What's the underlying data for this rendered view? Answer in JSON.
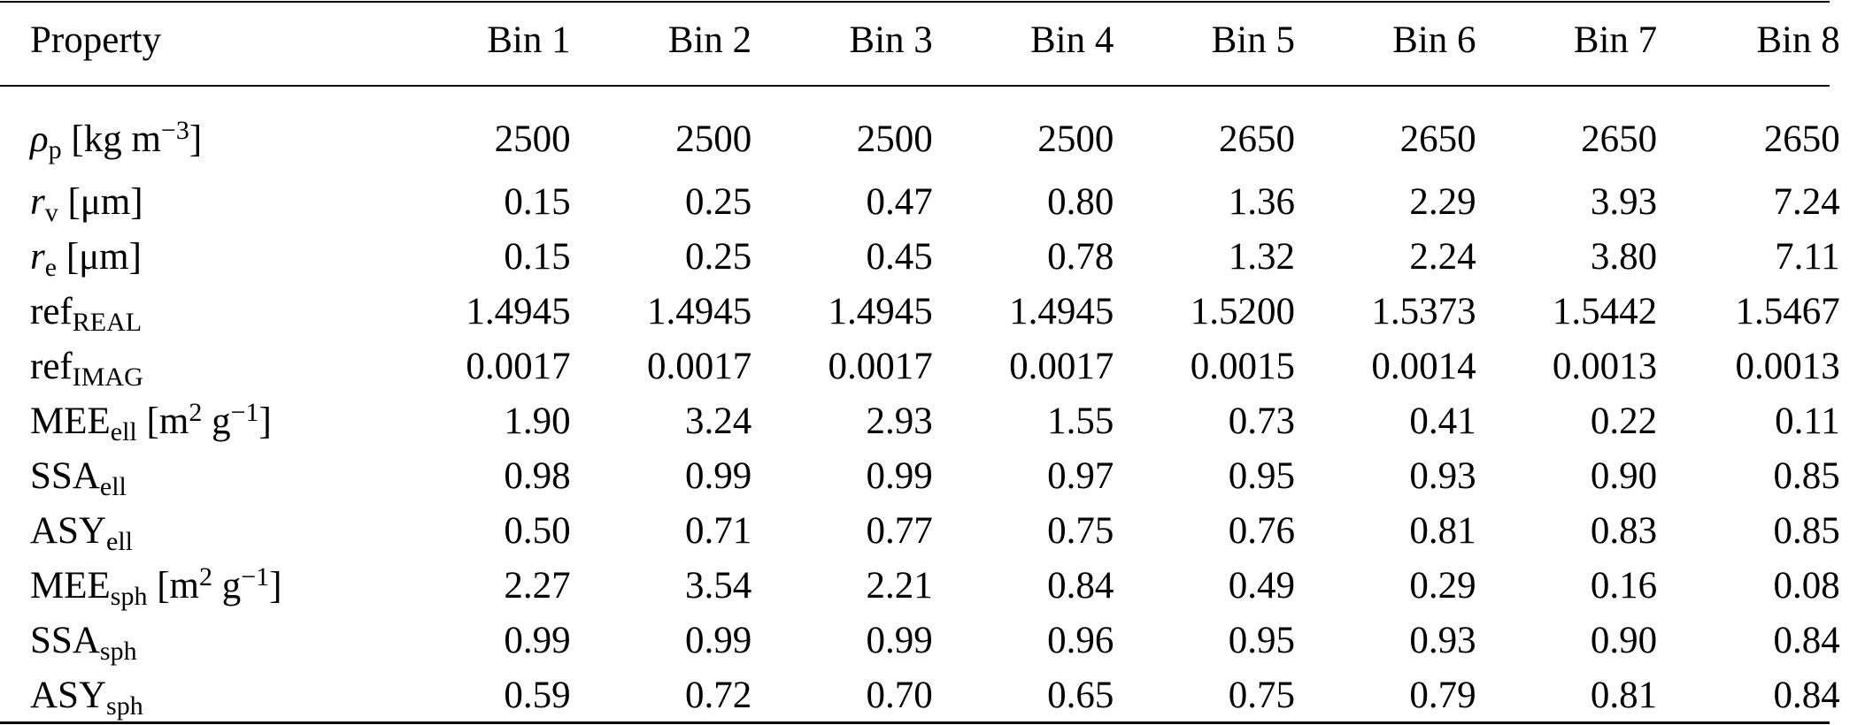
{
  "header": {
    "property": "Property",
    "bins": [
      "Bin 1",
      "Bin 2",
      "Bin 3",
      "Bin 4",
      "Bin 5",
      "Bin 6",
      "Bin 7",
      "Bin 8"
    ]
  },
  "rows": [
    {
      "label": {
        "main": "ρ",
        "sub": "p",
        "unit_pre": "[kg m",
        "unit_sup": "−3",
        "unit_post": "]"
      },
      "values": [
        "2500",
        "2500",
        "2500",
        "2500",
        "2650",
        "2650",
        "2650",
        "2650"
      ]
    },
    {
      "label": {
        "main": "r",
        "sub": "v",
        "unit_pre": "[μm]"
      },
      "values": [
        "0.15",
        "0.25",
        "0.47",
        "0.80",
        "1.36",
        "2.29",
        "3.93",
        "7.24"
      ]
    },
    {
      "label": {
        "main": "r",
        "sub": "e",
        "unit_pre": "[μm]"
      },
      "values": [
        "0.15",
        "0.25",
        "0.45",
        "0.78",
        "1.32",
        "2.24",
        "3.80",
        "7.11"
      ]
    },
    {
      "label": {
        "main": "ref",
        "sub": "REAL"
      },
      "values": [
        "1.4945",
        "1.4945",
        "1.4945",
        "1.4945",
        "1.5200",
        "1.5373",
        "1.5442",
        "1.5467"
      ]
    },
    {
      "label": {
        "main": "ref",
        "sub": "IMAG"
      },
      "values": [
        "0.0017",
        "0.0017",
        "0.0017",
        "0.0017",
        "0.0015",
        "0.0014",
        "0.0013",
        "0.0013"
      ]
    },
    {
      "label": {
        "main": "MEE",
        "sub": "ell",
        "unit_pre": "[m",
        "unit_sup": "2",
        "unit_mid": " g",
        "unit_sup2": "−1",
        "unit_post": "]"
      },
      "values": [
        "1.90",
        "3.24",
        "2.93",
        "1.55",
        "0.73",
        "0.41",
        "0.22",
        "0.11"
      ]
    },
    {
      "label": {
        "main": "SSA",
        "sub": "ell"
      },
      "values": [
        "0.98",
        "0.99",
        "0.99",
        "0.97",
        "0.95",
        "0.93",
        "0.90",
        "0.85"
      ]
    },
    {
      "label": {
        "main": "ASY",
        "sub": "ell"
      },
      "values": [
        "0.50",
        "0.71",
        "0.77",
        "0.75",
        "0.76",
        "0.81",
        "0.83",
        "0.85"
      ]
    },
    {
      "label": {
        "main": "MEE",
        "sub": "sph",
        "unit_pre": "[m",
        "unit_sup": "2",
        "unit_mid": " g",
        "unit_sup2": "−1",
        "unit_post": "]"
      },
      "values": [
        "2.27",
        "3.54",
        "2.21",
        "0.84",
        "0.49",
        "0.29",
        "0.16",
        "0.08"
      ]
    },
    {
      "label": {
        "main": "SSA",
        "sub": "sph"
      },
      "values": [
        "0.99",
        "0.99",
        "0.99",
        "0.96",
        "0.95",
        "0.93",
        "0.90",
        "0.84"
      ]
    },
    {
      "label": {
        "main": "ASY",
        "sub": "sph"
      },
      "values": [
        "0.59",
        "0.72",
        "0.70",
        "0.65",
        "0.75",
        "0.79",
        "0.81",
        "0.84"
      ]
    }
  ]
}
